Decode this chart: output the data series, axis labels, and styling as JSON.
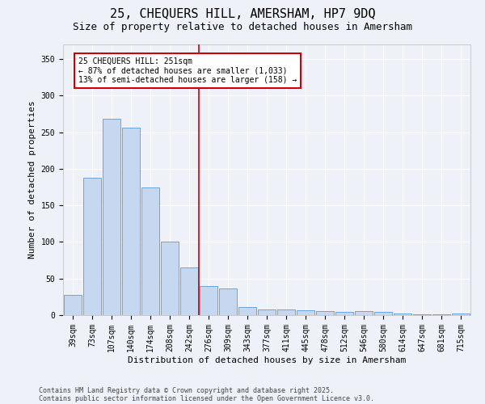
{
  "title1": "25, CHEQUERS HILL, AMERSHAM, HP7 9DQ",
  "title2": "Size of property relative to detached houses in Amersham",
  "xlabel": "Distribution of detached houses by size in Amersham",
  "ylabel": "Number of detached properties",
  "categories": [
    "39sqm",
    "73sqm",
    "107sqm",
    "140sqm",
    "174sqm",
    "208sqm",
    "242sqm",
    "276sqm",
    "309sqm",
    "343sqm",
    "377sqm",
    "411sqm",
    "445sqm",
    "478sqm",
    "512sqm",
    "546sqm",
    "580sqm",
    "614sqm",
    "647sqm",
    "681sqm",
    "715sqm"
  ],
  "values": [
    28,
    188,
    268,
    256,
    174,
    100,
    65,
    40,
    37,
    11,
    8,
    8,
    7,
    5,
    4,
    5,
    4,
    2,
    1,
    1,
    2
  ],
  "bar_color": "#c5d8f0",
  "bar_edge_color": "#5b9bd5",
  "ylim": [
    0,
    370
  ],
  "yticks": [
    0,
    50,
    100,
    150,
    200,
    250,
    300,
    350
  ],
  "property_line_x": 6.5,
  "property_line_color": "#cc0000",
  "annotation_text": "25 CHEQUERS HILL: 251sqm\n← 87% of detached houses are smaller (1,033)\n13% of semi-detached houses are larger (158) →",
  "annotation_box_color": "#cc0000",
  "footnote1": "Contains HM Land Registry data © Crown copyright and database right 2025.",
  "footnote2": "Contains public sector information licensed under the Open Government Licence v3.0.",
  "background_color": "#eef2f8",
  "grid_color": "#ffffff",
  "title_fontsize": 11,
  "subtitle_fontsize": 9,
  "axis_fontsize": 8,
  "tick_fontsize": 7
}
